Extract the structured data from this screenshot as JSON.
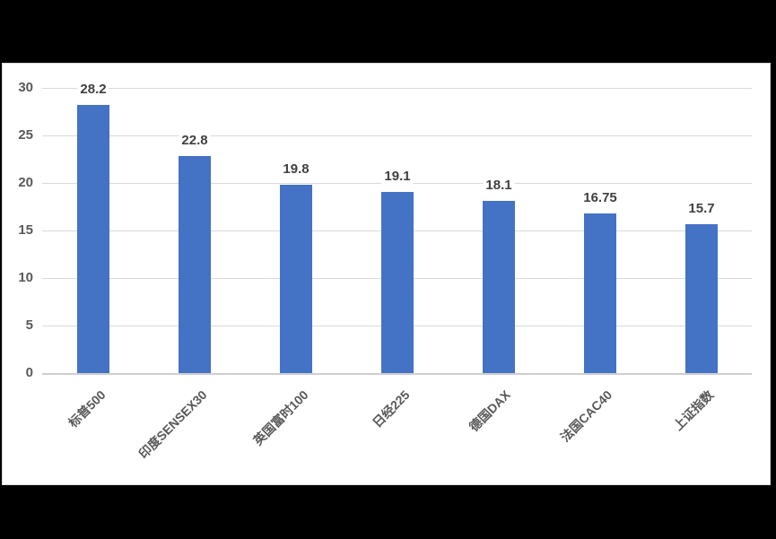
{
  "window": {
    "background_color": "#000000",
    "panel_background": "#ffffff",
    "panel_border_color": "#d9d9d9"
  },
  "chart_data": {
    "type": "bar",
    "title": "",
    "xlabel": "",
    "ylabel": "",
    "categories": [
      "标普500",
      "印度SENSEX30",
      "英国富时100",
      "日经225",
      "德国DAX",
      "法国CAC40",
      "上证指数"
    ],
    "values": [
      28.2,
      22.8,
      19.8,
      19.1,
      18.1,
      16.75,
      15.7
    ],
    "data_labels": [
      "28.2",
      "22.8",
      "19.8",
      "19.1",
      "18.1",
      "16.75",
      "15.7"
    ],
    "ylim": [
      0,
      30
    ],
    "yticks": [
      0,
      5,
      10,
      15,
      20,
      25,
      30
    ],
    "grid": true,
    "legend": false,
    "category_label_rotation_deg": -45,
    "colors": {
      "bar": "#4472c4",
      "gridline": "#d9d9d9",
      "axis_line": "#cfcfcf",
      "ytick_label": "#595959",
      "category_label": "#595959",
      "data_label": "#404040"
    }
  }
}
